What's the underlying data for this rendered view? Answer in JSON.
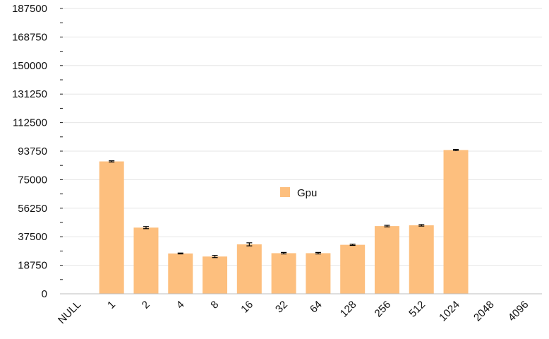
{
  "chart_data": {
    "type": "bar",
    "categories": [
      "NULL",
      "1",
      "2",
      "4",
      "8",
      "16",
      "32",
      "64",
      "128",
      "256",
      "512",
      "1024",
      "2048",
      "4096"
    ],
    "series": [
      {
        "name": "Gpu",
        "color": "#fdbf7e",
        "values": [
          null,
          87000,
          43500,
          26500,
          24500,
          32500,
          26700,
          26700,
          32200,
          44500,
          45000,
          94500,
          null,
          null
        ],
        "errors": [
          null,
          400,
          700,
          300,
          700,
          1000,
          500,
          500,
          400,
          500,
          500,
          400,
          null,
          null
        ]
      }
    ],
    "ylim": [
      0,
      187500
    ],
    "yticks": [
      "0",
      "18750",
      "37500",
      "56250",
      "75000",
      "93750",
      "112500",
      "131250",
      "150000",
      "168750",
      "187500"
    ],
    "grid": true,
    "legend": "center"
  }
}
